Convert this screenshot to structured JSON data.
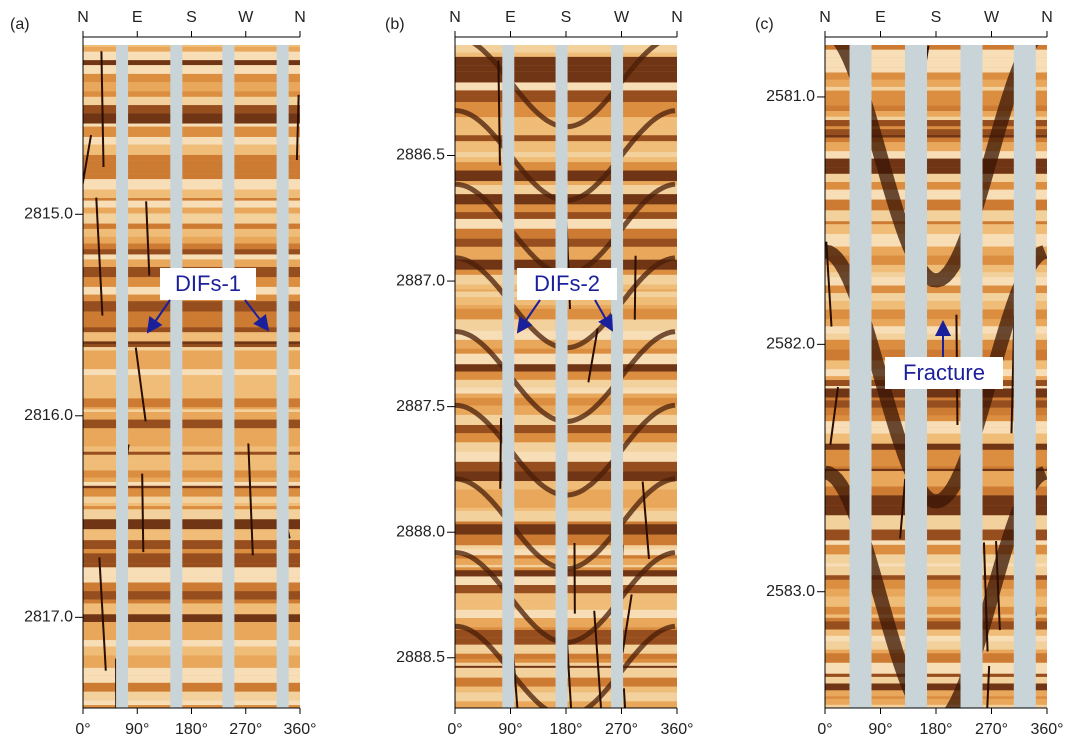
{
  "chart_data": [
    {
      "type": "image-log",
      "panel_label": "(a)",
      "top_labels": [
        "N",
        "E",
        "S",
        "W",
        "N"
      ],
      "xlim": [
        0,
        360
      ],
      "xticks": [
        {
          "value": 0,
          "label": "0°"
        },
        {
          "value": 90,
          "label": "90°"
        },
        {
          "value": 180,
          "label": "180°"
        },
        {
          "value": 270,
          "label": "270°"
        },
        {
          "value": 360,
          "label": "360°"
        }
      ],
      "ylim": [
        2814.16,
        2817.45
      ],
      "yticks": [
        {
          "value": 2815,
          "label": "2815.0"
        },
        {
          "value": 2816,
          "label": "2816.0"
        },
        {
          "value": 2817,
          "label": "2817.0"
        }
      ],
      "annotation": "DIFs-1"
    },
    {
      "type": "image-log",
      "panel_label": "(b)",
      "top_labels": [
        "N",
        "E",
        "S",
        "W",
        "N"
      ],
      "xlim": [
        0,
        360
      ],
      "xticks": [
        {
          "value": 0,
          "label": "0°"
        },
        {
          "value": 90,
          "label": "90°"
        },
        {
          "value": 180,
          "label": "180°"
        },
        {
          "value": 270,
          "label": "270°"
        },
        {
          "value": 360,
          "label": "360°"
        }
      ],
      "ylim": [
        2886.06,
        2888.7
      ],
      "yticks": [
        {
          "value": 2886.5,
          "label": "2886.5"
        },
        {
          "value": 2887,
          "label": "2887.0"
        },
        {
          "value": 2887.5,
          "label": "2887.5"
        },
        {
          "value": 2888,
          "label": "2888.0"
        },
        {
          "value": 2888.5,
          "label": "2888.5"
        }
      ],
      "annotation": "DIFs-2"
    },
    {
      "type": "image-log",
      "panel_label": "(c)",
      "top_labels": [
        "N",
        "E",
        "S",
        "W",
        "N"
      ],
      "xlim": [
        0,
        360
      ],
      "xticks": [
        {
          "value": 0,
          "label": "0°"
        },
        {
          "value": 90,
          "label": "90°"
        },
        {
          "value": 180,
          "label": "180°"
        },
        {
          "value": 270,
          "label": "270°"
        },
        {
          "value": 360,
          "label": "360°"
        }
      ],
      "ylim": [
        2580.79,
        2583.47
      ],
      "yticks": [
        {
          "value": 2581,
          "label": "2581.0"
        },
        {
          "value": 2582,
          "label": "2582.0"
        },
        {
          "value": 2583,
          "label": "2583.0"
        }
      ],
      "annotation": "Fracture"
    }
  ]
}
